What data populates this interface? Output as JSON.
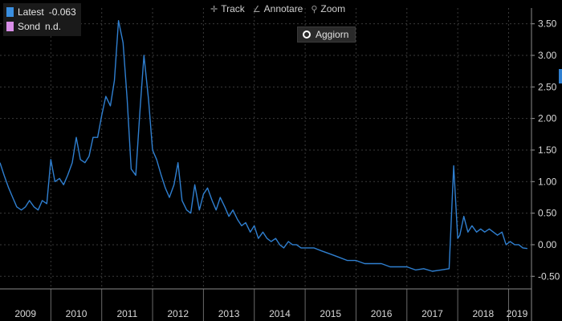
{
  "legend": {
    "items": [
      {
        "label": "Latest",
        "value": "-0.063",
        "color": "#3a8fe0"
      },
      {
        "label": "Sond",
        "value": "n.d.",
        "color": "#d98ee8"
      }
    ]
  },
  "toolbar": {
    "track_label": "Track",
    "annotate_label": "Annotare",
    "zoom_label": "Zoom",
    "update_label": "Aggiorn"
  },
  "colors": {
    "background": "#000000",
    "line": "#2f7fd0",
    "grid": "#3a3a3a",
    "text": "#d8d8d8"
  },
  "chart_data": {
    "type": "line",
    "title": "",
    "xlabel": "",
    "ylabel": "",
    "x_ticks": [
      "2009",
      "2010",
      "2011",
      "2012",
      "2013",
      "2014",
      "2015",
      "2016",
      "2017",
      "2018",
      "2019"
    ],
    "y_ticks": [
      "3.50",
      "3.00",
      "2.50",
      "2.00",
      "1.50",
      "1.00",
      "0.50",
      "0.00",
      "-0.50"
    ],
    "ylim": [
      -0.7,
      3.75
    ],
    "xlim": [
      2009.0,
      2019.45
    ],
    "grid": true,
    "series": [
      {
        "name": "Latest",
        "color": "#2f7fd0",
        "x": [
          2009.0,
          2009.08,
          2009.17,
          2009.25,
          2009.33,
          2009.42,
          2009.5,
          2009.58,
          2009.67,
          2009.75,
          2009.83,
          2009.92,
          2010.0,
          2010.08,
          2010.17,
          2010.25,
          2010.33,
          2010.42,
          2010.5,
          2010.58,
          2010.67,
          2010.75,
          2010.83,
          2010.92,
          2011.0,
          2011.08,
          2011.17,
          2011.25,
          2011.33,
          2011.42,
          2011.5,
          2011.58,
          2011.67,
          2011.75,
          2011.83,
          2011.92,
          2012.0,
          2012.08,
          2012.17,
          2012.25,
          2012.33,
          2012.42,
          2012.5,
          2012.58,
          2012.67,
          2012.75,
          2012.83,
          2012.92,
          2013.0,
          2013.08,
          2013.17,
          2013.25,
          2013.33,
          2013.42,
          2013.5,
          2013.58,
          2013.67,
          2013.75,
          2013.83,
          2013.92,
          2014.0,
          2014.08,
          2014.17,
          2014.25,
          2014.33,
          2014.42,
          2014.5,
          2014.58,
          2014.67,
          2014.75,
          2014.83,
          2014.92,
          2015.0,
          2015.17,
          2015.33,
          2015.5,
          2015.67,
          2015.83,
          2016.0,
          2016.17,
          2016.33,
          2016.5,
          2016.67,
          2016.83,
          2017.0,
          2017.17,
          2017.33,
          2017.5,
          2017.67,
          2017.83,
          2017.92,
          2018.0,
          2018.04,
          2018.12,
          2018.2,
          2018.28,
          2018.37,
          2018.45,
          2018.53,
          2018.62,
          2018.7,
          2018.78,
          2018.87,
          2018.95,
          2019.03,
          2019.12,
          2019.2,
          2019.28,
          2019.37
        ],
        "y": [
          1.3,
          1.1,
          0.9,
          0.75,
          0.6,
          0.55,
          0.6,
          0.7,
          0.6,
          0.55,
          0.7,
          0.65,
          1.35,
          1.0,
          1.05,
          0.95,
          1.1,
          1.3,
          1.7,
          1.35,
          1.3,
          1.4,
          1.7,
          1.7,
          2.05,
          2.35,
          2.2,
          2.6,
          3.55,
          3.2,
          2.3,
          1.2,
          1.1,
          2.1,
          3.0,
          2.3,
          1.5,
          1.35,
          1.1,
          0.9,
          0.75,
          0.95,
          1.3,
          0.7,
          0.55,
          0.5,
          0.95,
          0.55,
          0.8,
          0.9,
          0.7,
          0.55,
          0.75,
          0.6,
          0.45,
          0.55,
          0.4,
          0.3,
          0.35,
          0.2,
          0.3,
          0.1,
          0.2,
          0.1,
          0.05,
          0.1,
          0.0,
          -0.05,
          0.05,
          0.0,
          0.0,
          -0.05,
          -0.05,
          -0.05,
          -0.1,
          -0.15,
          -0.2,
          -0.25,
          -0.25,
          -0.3,
          -0.3,
          -0.3,
          -0.35,
          -0.35,
          -0.35,
          -0.4,
          -0.38,
          -0.42,
          -0.4,
          -0.38,
          1.25,
          0.1,
          0.15,
          0.45,
          0.2,
          0.3,
          0.2,
          0.25,
          0.2,
          0.25,
          0.2,
          0.15,
          0.2,
          0.0,
          0.05,
          0.0,
          0.0,
          -0.05,
          -0.06
        ]
      }
    ]
  }
}
